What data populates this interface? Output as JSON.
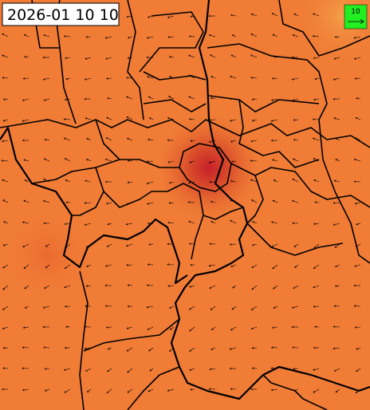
{
  "header": {
    "timestamp": "2026-01 10 10"
  },
  "legend": {
    "reference_label": "10"
  }
}
